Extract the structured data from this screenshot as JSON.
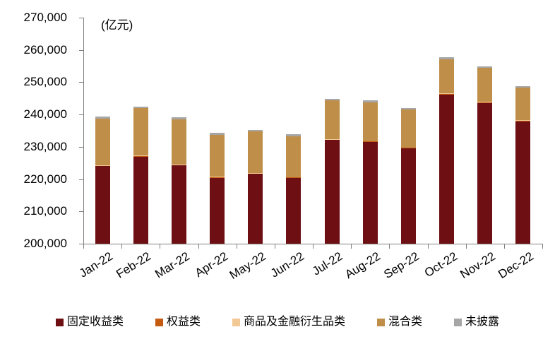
{
  "chart_data": {
    "type": "bar",
    "stacked": true,
    "title": "",
    "unit_label": "(亿元)",
    "xlabel": "",
    "ylabel": "",
    "categories": [
      "Jan-22",
      "Feb-22",
      "Mar-22",
      "Apr-22",
      "May-22",
      "Jun-22",
      "Jul-22",
      "Aug-22",
      "Sep-22",
      "Oct-22",
      "Nov-22",
      "Dec-22"
    ],
    "series": [
      {
        "name": "固定收益类",
        "color": "#6E1013",
        "values": [
          224000,
          227000,
          224200,
          220400,
          221600,
          220300,
          232100,
          231500,
          229500,
          246200,
          243600,
          237900
        ]
      },
      {
        "name": "权益类",
        "color": "#C55A11",
        "values": [
          150,
          150,
          150,
          150,
          150,
          150,
          150,
          150,
          150,
          150,
          150,
          150
        ]
      },
      {
        "name": "商品及金融衍生品类",
        "color": "#F2C894",
        "values": [
          150,
          150,
          150,
          150,
          150,
          150,
          150,
          150,
          150,
          150,
          150,
          150
        ]
      },
      {
        "name": "混合类",
        "color": "#BF8F4A",
        "values": [
          14400,
          14600,
          14100,
          12900,
          12800,
          12700,
          11900,
          12000,
          11700,
          10700,
          10500,
          10100
        ]
      },
      {
        "name": "未披露",
        "color": "#A6A6A6",
        "values": [
          700,
          500,
          500,
          700,
          500,
          600,
          500,
          500,
          400,
          600,
          500,
          500
        ]
      }
    ],
    "totals": [
      239400,
      242400,
      239100,
      234300,
      235200,
      233900,
      244800,
      244300,
      241900,
      257800,
      254900,
      248800
    ],
    "ylim": [
      200000,
      270000
    ],
    "ytick_step": 10000,
    "ytick_labels": [
      "200,000",
      "210,000",
      "220,000",
      "230,000",
      "240,000",
      "250,000",
      "260,000",
      "270,000"
    ],
    "grid": false,
    "legend_position": "bottom"
  }
}
